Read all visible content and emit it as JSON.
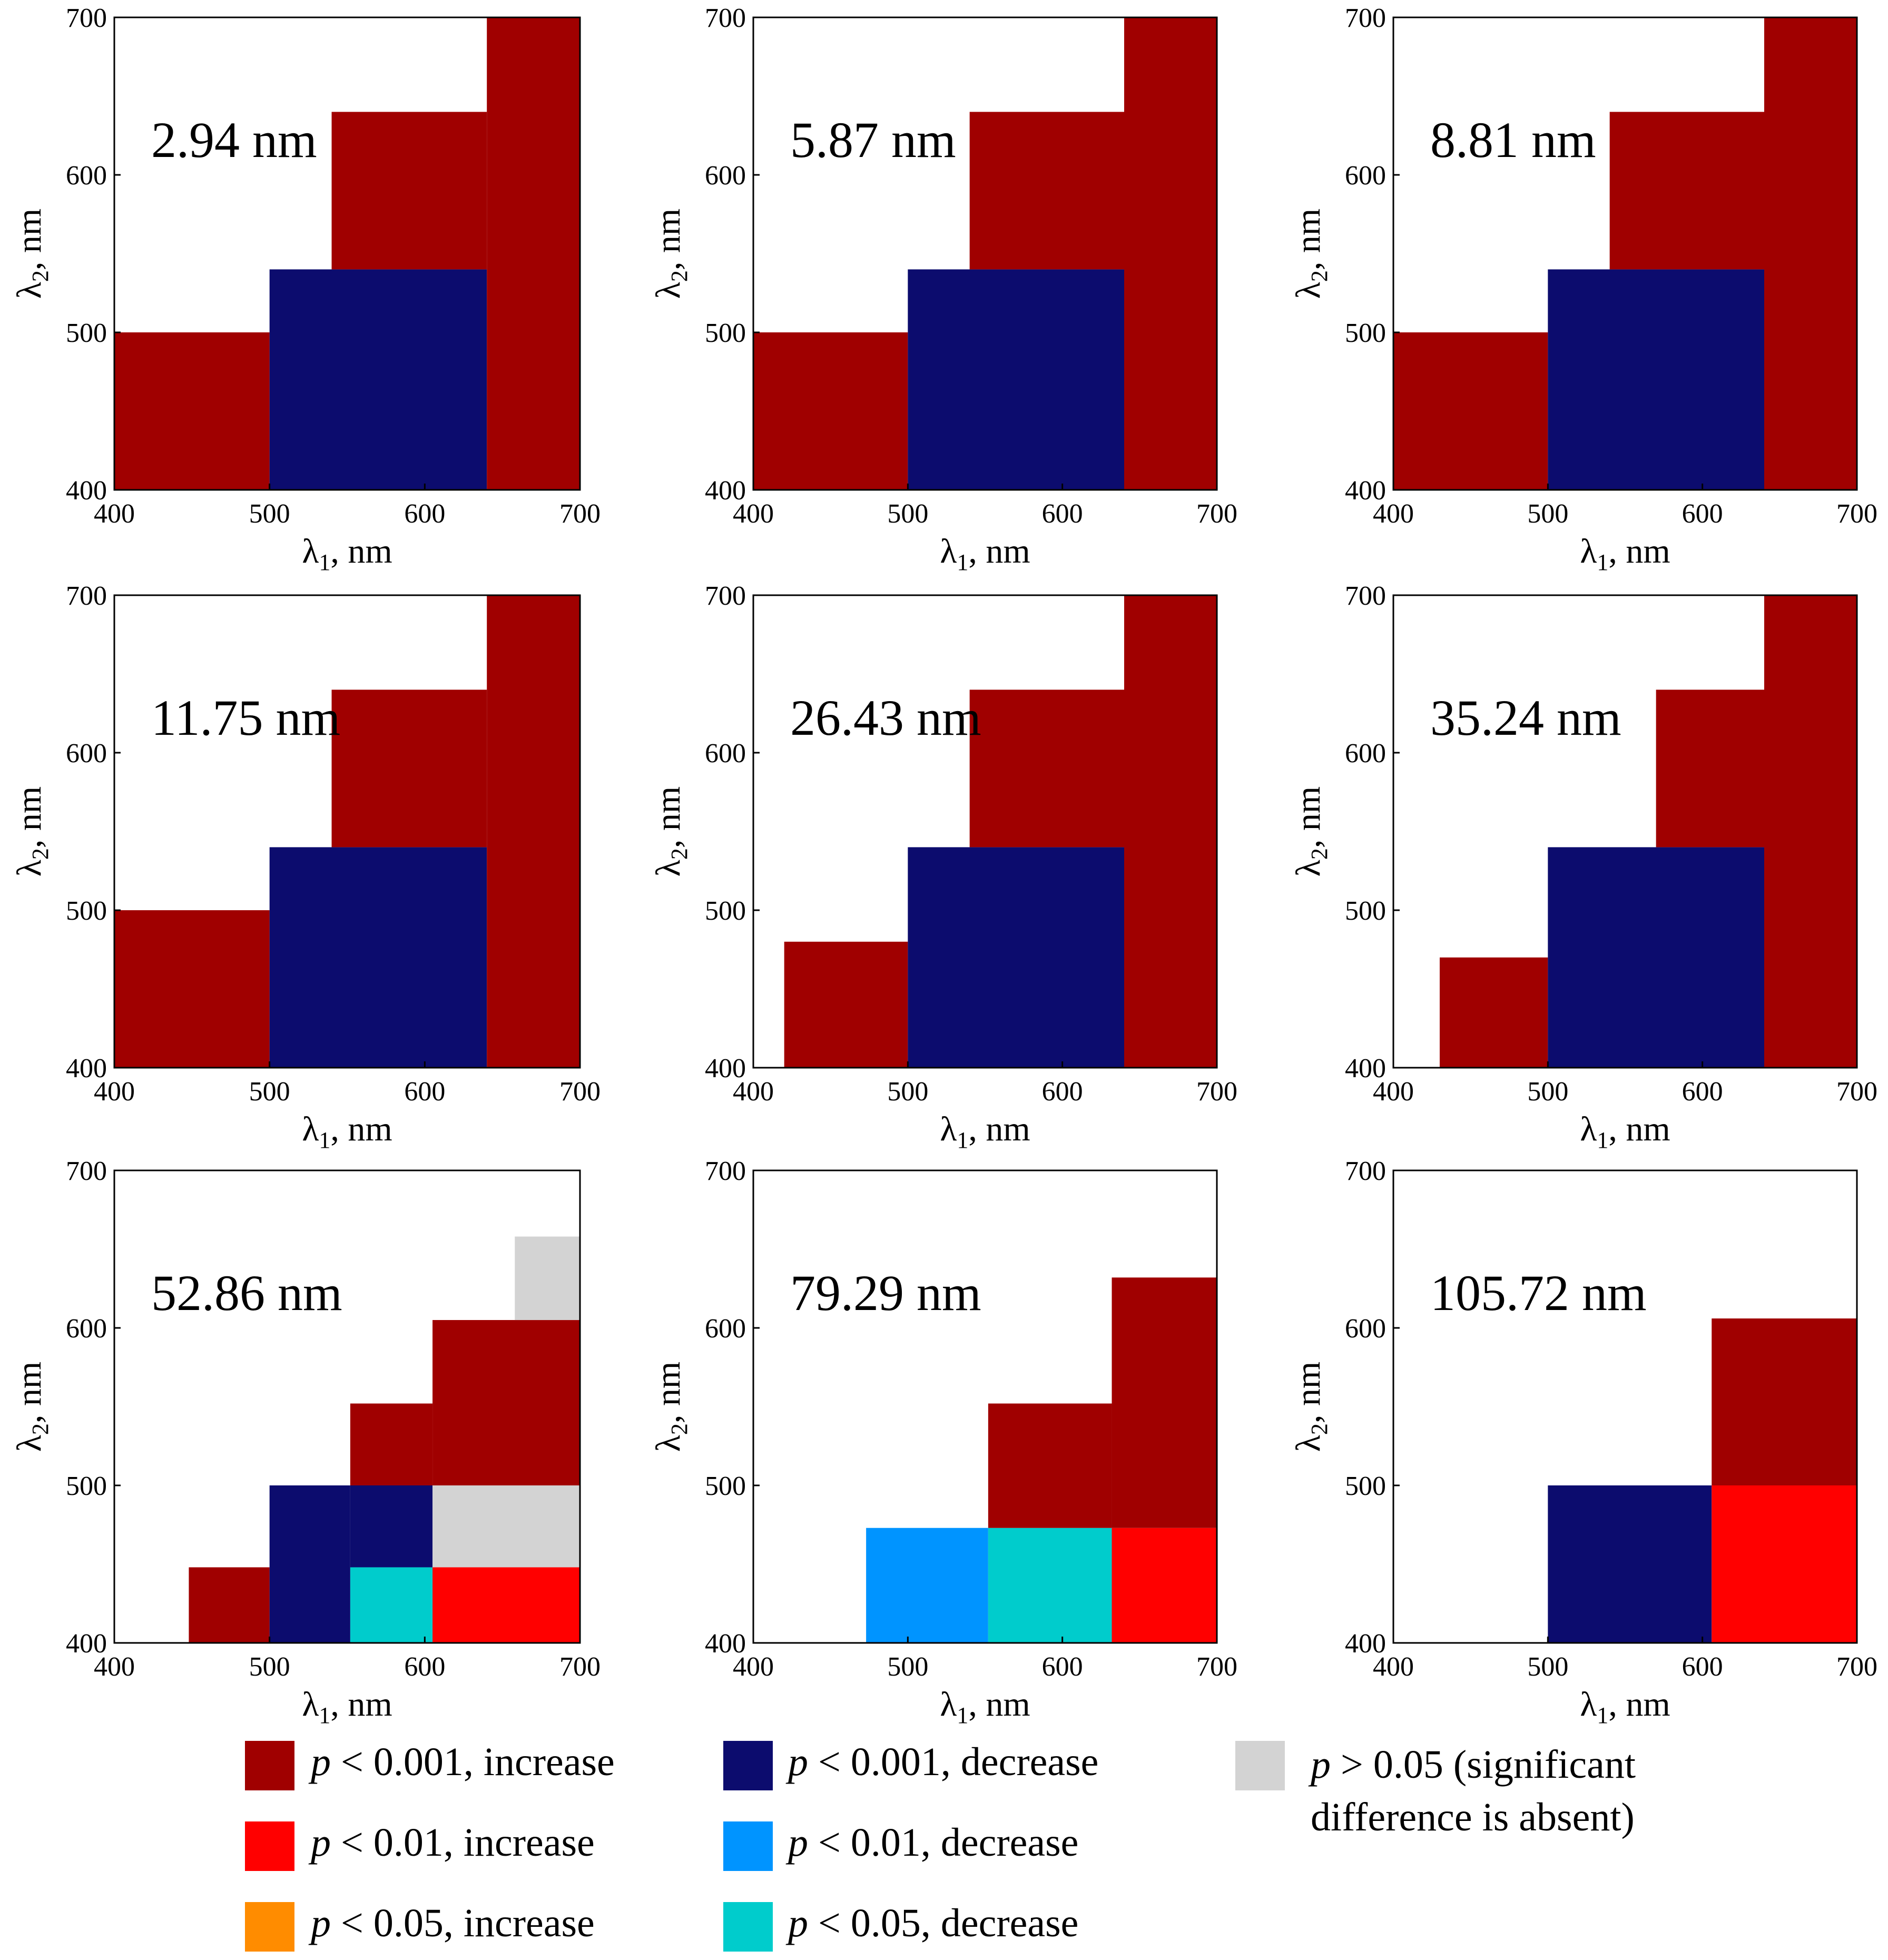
{
  "colors": {
    "p001_increase": "#a00000",
    "p01_increase": "#ff0000",
    "p05_increase": "#ff8c00",
    "p001_decrease": "#0c0c6e",
    "p01_decrease": "#0094ff",
    "p05_decrease": "#00cccc",
    "not_significant": "#d3d3d3"
  },
  "chart_data": [
    {
      "type": "heatmap",
      "title": "2.94 nm",
      "xlabel": "λ1, nm",
      "ylabel": "λ2, nm",
      "xlim": [
        400,
        700
      ],
      "ylim": [
        400,
        700
      ],
      "xticks": [
        "400",
        "500",
        "600",
        "700"
      ],
      "yticks": [
        "400",
        "500",
        "600",
        "700"
      ],
      "cells": [
        {
          "x0": 400,
          "x1": 500,
          "y0": 400,
          "y1": 500,
          "class": "p001_increase"
        },
        {
          "x0": 500,
          "x1": 640,
          "y0": 400,
          "y1": 540,
          "class": "p001_decrease"
        },
        {
          "x0": 640,
          "x1": 700,
          "y0": 400,
          "y1": 700,
          "class": "p001_increase"
        },
        {
          "x0": 540,
          "x1": 640,
          "y0": 540,
          "y1": 640,
          "class": "p001_increase"
        }
      ]
    },
    {
      "type": "heatmap",
      "title": "5.87 nm",
      "xlabel": "λ1, nm",
      "ylabel": "λ2, nm",
      "xlim": [
        400,
        700
      ],
      "ylim": [
        400,
        700
      ],
      "xticks": [
        "400",
        "500",
        "600",
        "700"
      ],
      "yticks": [
        "400",
        "500",
        "600",
        "700"
      ],
      "cells": [
        {
          "x0": 400,
          "x1": 500,
          "y0": 400,
          "y1": 500,
          "class": "p001_increase"
        },
        {
          "x0": 500,
          "x1": 640,
          "y0": 400,
          "y1": 540,
          "class": "p001_decrease"
        },
        {
          "x0": 640,
          "x1": 700,
          "y0": 400,
          "y1": 700,
          "class": "p001_increase"
        },
        {
          "x0": 540,
          "x1": 640,
          "y0": 540,
          "y1": 640,
          "class": "p001_increase"
        }
      ]
    },
    {
      "type": "heatmap",
      "title": "8.81 nm",
      "xlabel": "λ1, nm",
      "ylabel": "λ2, nm",
      "xlim": [
        400,
        700
      ],
      "ylim": [
        400,
        700
      ],
      "xticks": [
        "400",
        "500",
        "600",
        "700"
      ],
      "yticks": [
        "400",
        "500",
        "600",
        "700"
      ],
      "cells": [
        {
          "x0": 400,
          "x1": 500,
          "y0": 400,
          "y1": 500,
          "class": "p001_increase"
        },
        {
          "x0": 500,
          "x1": 640,
          "y0": 400,
          "y1": 540,
          "class": "p001_decrease"
        },
        {
          "x0": 640,
          "x1": 700,
          "y0": 400,
          "y1": 700,
          "class": "p001_increase"
        },
        {
          "x0": 540,
          "x1": 640,
          "y0": 540,
          "y1": 640,
          "class": "p001_increase"
        }
      ]
    },
    {
      "type": "heatmap",
      "title": "11.75 nm",
      "xlabel": "λ1, nm",
      "ylabel": "λ2, nm",
      "xlim": [
        400,
        700
      ],
      "ylim": [
        400,
        700
      ],
      "xticks": [
        "400",
        "500",
        "600",
        "700"
      ],
      "yticks": [
        "400",
        "500",
        "600",
        "700"
      ],
      "cells": [
        {
          "x0": 400,
          "x1": 500,
          "y0": 400,
          "y1": 500,
          "class": "p001_increase"
        },
        {
          "x0": 500,
          "x1": 640,
          "y0": 400,
          "y1": 540,
          "class": "p001_decrease"
        },
        {
          "x0": 640,
          "x1": 700,
          "y0": 400,
          "y1": 700,
          "class": "p001_increase"
        },
        {
          "x0": 540,
          "x1": 640,
          "y0": 540,
          "y1": 640,
          "class": "p001_increase"
        }
      ]
    },
    {
      "type": "heatmap",
      "title": "26.43 nm",
      "xlabel": "λ1, nm",
      "ylabel": "λ2, nm",
      "xlim": [
        400,
        700
      ],
      "ylim": [
        400,
        700
      ],
      "xticks": [
        "400",
        "500",
        "600",
        "700"
      ],
      "yticks": [
        "400",
        "500",
        "600",
        "700"
      ],
      "cells": [
        {
          "x0": 420,
          "x1": 500,
          "y0": 400,
          "y1": 480,
          "class": "p001_increase"
        },
        {
          "x0": 500,
          "x1": 640,
          "y0": 400,
          "y1": 540,
          "class": "p001_decrease"
        },
        {
          "x0": 640,
          "x1": 700,
          "y0": 400,
          "y1": 700,
          "class": "p001_increase"
        },
        {
          "x0": 540,
          "x1": 640,
          "y0": 540,
          "y1": 640,
          "class": "p001_increase"
        }
      ]
    },
    {
      "type": "heatmap",
      "title": "35.24 nm",
      "xlabel": "λ1, nm",
      "ylabel": "λ2, nm",
      "xlim": [
        400,
        700
      ],
      "ylim": [
        400,
        700
      ],
      "xticks": [
        "400",
        "500",
        "600",
        "700"
      ],
      "yticks": [
        "400",
        "500",
        "600",
        "700"
      ],
      "cells": [
        {
          "x0": 430,
          "x1": 500,
          "y0": 400,
          "y1": 470,
          "class": "p001_increase"
        },
        {
          "x0": 500,
          "x1": 640,
          "y0": 400,
          "y1": 540,
          "class": "p001_decrease"
        },
        {
          "x0": 640,
          "x1": 700,
          "y0": 400,
          "y1": 700,
          "class": "p001_increase"
        },
        {
          "x0": 570,
          "x1": 640,
          "y0": 540,
          "y1": 640,
          "class": "p001_increase"
        }
      ]
    },
    {
      "type": "heatmap",
      "title": "52.86 nm",
      "xlabel": "λ1, nm",
      "ylabel": "λ2, nm",
      "xlim": [
        400,
        700
      ],
      "ylim": [
        400,
        700
      ],
      "xticks": [
        "400",
        "500",
        "600",
        "700"
      ],
      "yticks": [
        "400",
        "500",
        "600",
        "700"
      ],
      "cells": [
        {
          "x0": 448,
          "x1": 500,
          "y0": 400,
          "y1": 448,
          "class": "p001_increase"
        },
        {
          "x0": 500,
          "x1": 552,
          "y0": 400,
          "y1": 500,
          "class": "p001_decrease"
        },
        {
          "x0": 552,
          "x1": 605,
          "y0": 448,
          "y1": 500,
          "class": "p001_decrease"
        },
        {
          "x0": 552,
          "x1": 605,
          "y0": 400,
          "y1": 448,
          "class": "p05_decrease"
        },
        {
          "x0": 605,
          "x1": 700,
          "y0": 400,
          "y1": 448,
          "class": "p01_increase"
        },
        {
          "x0": 605,
          "x1": 700,
          "y0": 448,
          "y1": 500,
          "class": "not_significant"
        },
        {
          "x0": 552,
          "x1": 605,
          "y0": 500,
          "y1": 552,
          "class": "p001_increase"
        },
        {
          "x0": 605,
          "x1": 700,
          "y0": 500,
          "y1": 605,
          "class": "p001_increase"
        },
        {
          "x0": 658,
          "x1": 700,
          "y0": 605,
          "y1": 658,
          "class": "not_significant"
        }
      ]
    },
    {
      "type": "heatmap",
      "title": "79.29 nm",
      "xlabel": "λ1, nm",
      "ylabel": "λ2, nm",
      "xlim": [
        400,
        700
      ],
      "ylim": [
        400,
        700
      ],
      "xticks": [
        "400",
        "500",
        "600",
        "700"
      ],
      "yticks": [
        "400",
        "500",
        "600",
        "700"
      ],
      "cells": [
        {
          "x0": 473,
          "x1": 552,
          "y0": 400,
          "y1": 473,
          "class": "p01_decrease"
        },
        {
          "x0": 552,
          "x1": 632,
          "y0": 400,
          "y1": 473,
          "class": "p05_decrease"
        },
        {
          "x0": 632,
          "x1": 700,
          "y0": 400,
          "y1": 473,
          "class": "p01_increase"
        },
        {
          "x0": 552,
          "x1": 632,
          "y0": 473,
          "y1": 552,
          "class": "p001_increase"
        },
        {
          "x0": 632,
          "x1": 700,
          "y0": 473,
          "y1": 632,
          "class": "p001_increase"
        }
      ]
    },
    {
      "type": "heatmap",
      "title": "105.72 nm",
      "xlabel": "λ1, nm",
      "ylabel": "λ2, nm",
      "xlim": [
        400,
        700
      ],
      "ylim": [
        400,
        700
      ],
      "xticks": [
        "400",
        "500",
        "600",
        "700"
      ],
      "yticks": [
        "400",
        "500",
        "600",
        "700"
      ],
      "cells": [
        {
          "x0": 500,
          "x1": 606,
          "y0": 400,
          "y1": 500,
          "class": "p001_decrease"
        },
        {
          "x0": 606,
          "x1": 700,
          "y0": 400,
          "y1": 500,
          "class": "p01_increase"
        },
        {
          "x0": 606,
          "x1": 700,
          "y0": 500,
          "y1": 606,
          "class": "p001_increase"
        }
      ]
    }
  ],
  "legend": [
    {
      "key": "p001_increase",
      "label": "< 0.001, increase"
    },
    {
      "key": "p01_increase",
      "label": "< 0.01, increase"
    },
    {
      "key": "p05_increase",
      "label": "< 0.05, increase"
    },
    {
      "key": "p001_decrease",
      "label": "< 0.001, decrease"
    },
    {
      "key": "p01_decrease",
      "label": "< 0.01, decrease"
    },
    {
      "key": "p05_decrease",
      "label": "< 0.05, decrease"
    },
    {
      "key": "not_significant",
      "label": "> 0.05 (significant",
      "label2": "difference is absent)"
    }
  ],
  "legend_pvar": "p"
}
